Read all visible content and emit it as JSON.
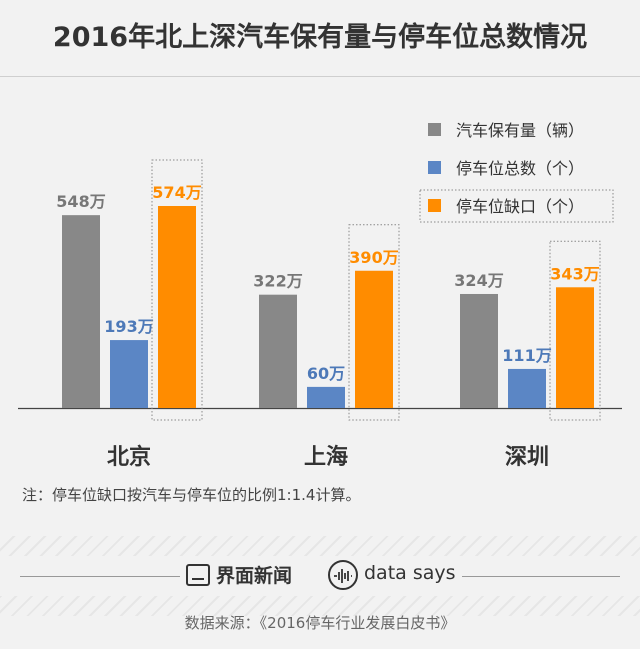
{
  "chart_data": {
    "type": "bar",
    "title": "2016年北上深汽车保有量与停车位总数情况",
    "categories": [
      "北京",
      "上海",
      "深圳"
    ],
    "series": [
      {
        "name": "汽车保有量（辆）",
        "values": [
          548,
          322,
          324
        ],
        "labels": [
          "548万",
          "322万",
          "324万"
        ],
        "color": "#888888",
        "label_color": "#777777"
      },
      {
        "name": "停车位总数（个）",
        "values": [
          193,
          60,
          111
        ],
        "labels": [
          "193万",
          "60万",
          "111万"
        ],
        "color": "#5b86c5",
        "label_color": "#4d79b8"
      },
      {
        "name": "停车位缺口（个）",
        "values": [
          574,
          390,
          343
        ],
        "labels": [
          "574万",
          "390万",
          "343万"
        ],
        "color": "#ff8c00",
        "label_color": "#ff8c00"
      }
    ],
    "unit": "万",
    "ylim": [
      0,
      574
    ],
    "legend_position": "top-right",
    "grid": false,
    "note": "注：停车位缺口按汽车与停车位的比例1:1.4计算。"
  },
  "brand": {
    "name": "界面新闻",
    "sub_brand": "data says"
  },
  "source": "数据来源：《2016停车行业发展白皮书》"
}
